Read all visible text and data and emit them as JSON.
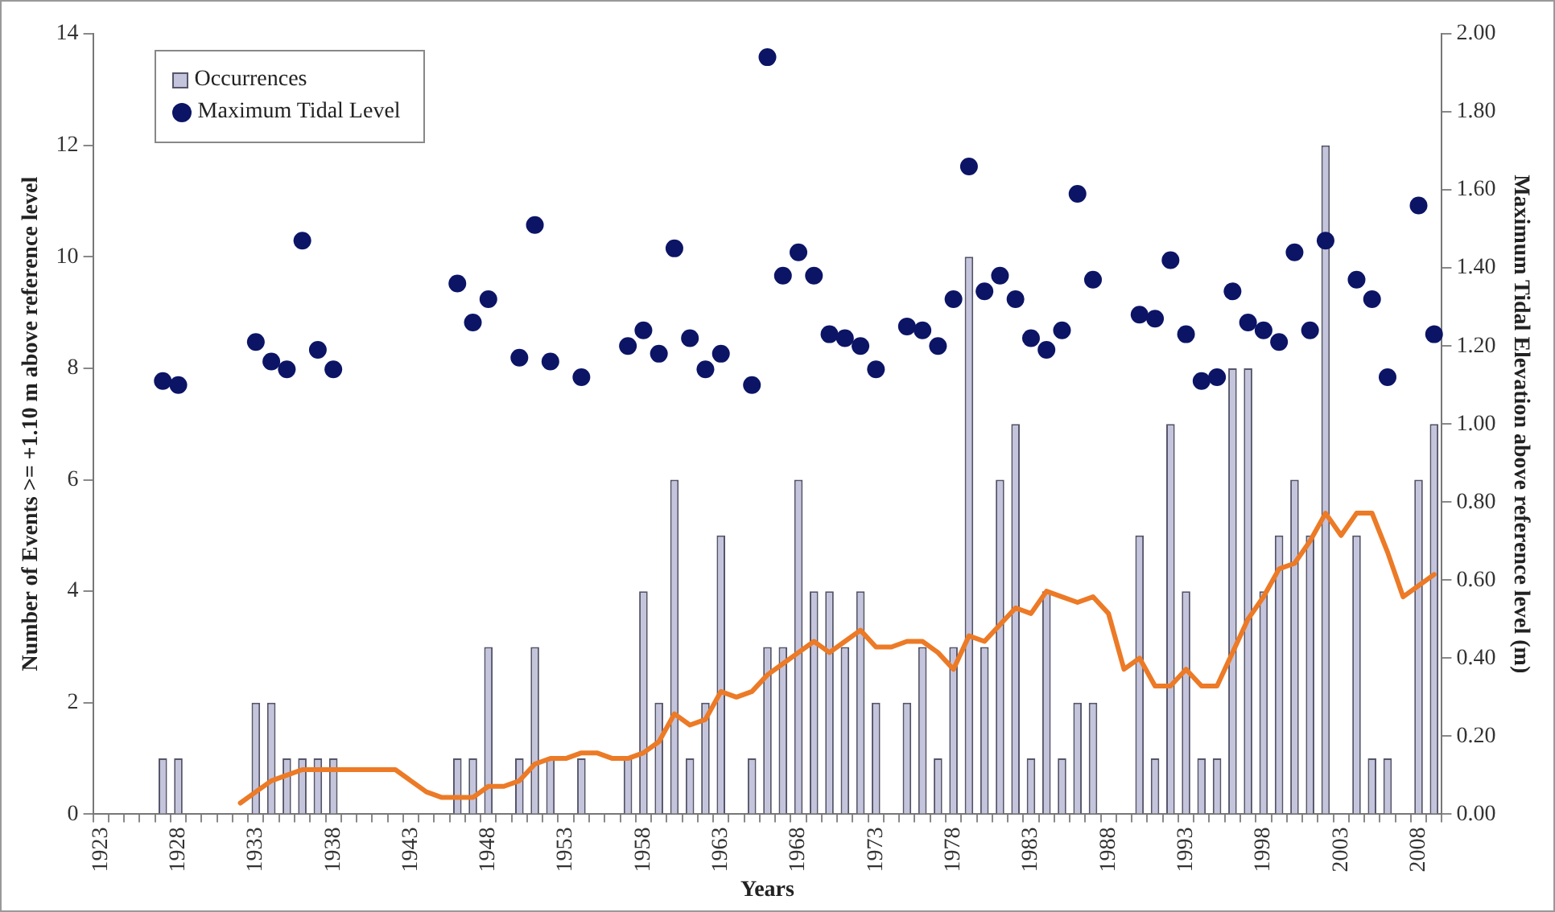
{
  "chart_data": {
    "type": "bar",
    "xlabel": "Years",
    "ylabel": "Number of Events >= +1.10 m above reference level",
    "y2label": "Maximum Tidal Elevation above reference level (m)",
    "categories": [
      "1923",
      null,
      null,
      null,
      null,
      "1928",
      null,
      null,
      null,
      null,
      "1933",
      null,
      null,
      null,
      null,
      "1938",
      null,
      null,
      null,
      null,
      "1943",
      null,
      null,
      null,
      null,
      "1948",
      null,
      null,
      null,
      null,
      "1953",
      null,
      null,
      null,
      null,
      "1958",
      null,
      null,
      null,
      null,
      "1963",
      null,
      null,
      null,
      null,
      "1968",
      null,
      null,
      null,
      null,
      "1973",
      null,
      null,
      null,
      null,
      "1978",
      null,
      null,
      null,
      null,
      "1983",
      null,
      null,
      null,
      null,
      "1988",
      null,
      null,
      null,
      null,
      "1993",
      null,
      null,
      null,
      null,
      "1998",
      null,
      null,
      null,
      null,
      "2003",
      null,
      null,
      null,
      null,
      "2008",
      null
    ],
    "series": [
      {
        "name": "Occurrences",
        "color": "#c4c4dc",
        "values": [
          0,
          0,
          0,
          0,
          1,
          1,
          0,
          0,
          0,
          0,
          2,
          2,
          1,
          1,
          1,
          1,
          0,
          0,
          0,
          0,
          0,
          0,
          0,
          1,
          1,
          3,
          0,
          1,
          3,
          1,
          0,
          1,
          0,
          0,
          1,
          4,
          2,
          6,
          1,
          2,
          5,
          0,
          1,
          3,
          3,
          6,
          4,
          4,
          3,
          4,
          2,
          0,
          2,
          3,
          1,
          3,
          10,
          3,
          6,
          7,
          1,
          4,
          1,
          2,
          2,
          0,
          0,
          5,
          1,
          7,
          4,
          1,
          1,
          8,
          8,
          4,
          5,
          6,
          5,
          12,
          0,
          5,
          1,
          1,
          0,
          6,
          7
        ]
      },
      {
        "type": "line",
        "color": "#ec7a26",
        "line_style": "solid",
        "marker": "none",
        "values": [
          null,
          null,
          null,
          null,
          null,
          null,
          null,
          null,
          null,
          0.2,
          0.4,
          0.6,
          0.7,
          0.8,
          0.8,
          0.8,
          0.8,
          0.8,
          0.8,
          0.8,
          0.6,
          0.4,
          0.3,
          0.3,
          0.3,
          0.5,
          0.5,
          0.6,
          0.9,
          1.0,
          1.0,
          1.1,
          1.1,
          1.0,
          1.0,
          1.1,
          1.3,
          1.8,
          1.6,
          1.7,
          2.2,
          2.1,
          2.2,
          2.5,
          2.7,
          2.9,
          3.1,
          2.9,
          3.1,
          3.3,
          3.0,
          3.0,
          3.1,
          3.1,
          2.9,
          2.6,
          3.2,
          3.1,
          3.4,
          3.7,
          3.6,
          4.0,
          3.9,
          3.8,
          3.9,
          3.6,
          2.6,
          2.8,
          2.3,
          2.3,
          2.6,
          2.3,
          2.3,
          2.9,
          3.5,
          3.9,
          4.4,
          4.5,
          4.9,
          5.4,
          5.0,
          5.4,
          5.4,
          4.7,
          3.9,
          4.1,
          4.3
        ]
      },
      {
        "name": "Maximum Tidal Level",
        "type": "scatter",
        "axis": "y2",
        "color": "#0c1466",
        "marker": "circle",
        "values": [
          null,
          null,
          null,
          null,
          1.11,
          1.1,
          null,
          null,
          null,
          null,
          1.21,
          1.16,
          1.14,
          1.47,
          1.19,
          1.14,
          null,
          null,
          null,
          null,
          null,
          null,
          null,
          1.36,
          1.26,
          1.32,
          null,
          1.17,
          1.51,
          1.16,
          null,
          1.12,
          null,
          null,
          1.2,
          1.24,
          1.18,
          1.45,
          1.22,
          1.14,
          1.18,
          null,
          1.1,
          1.94,
          1.38,
          1.44,
          1.38,
          1.23,
          1.22,
          1.2,
          1.14,
          null,
          1.25,
          1.24,
          1.2,
          1.32,
          1.66,
          1.34,
          1.38,
          1.32,
          1.22,
          1.19,
          1.24,
          1.59,
          1.37,
          null,
          null,
          1.28,
          1.27,
          1.42,
          1.23,
          1.11,
          1.12,
          1.34,
          1.26,
          1.24,
          1.21,
          1.44,
          1.24,
          1.47,
          null,
          1.37,
          1.32,
          1.12,
          null,
          1.56,
          1.23
        ]
      }
    ],
    "ylim": [
      0,
      14
    ],
    "yticks": [
      0,
      2,
      4,
      6,
      8,
      10,
      12,
      14
    ],
    "y2lim": [
      0,
      2
    ],
    "y2ticks": [
      {
        "value": 0,
        "label": "0.00"
      },
      {
        "value": 0.2,
        "label": "0.20"
      },
      {
        "value": 0.4,
        "label": "0.40"
      },
      {
        "value": 0.6,
        "label": "0.60"
      },
      {
        "value": 0.8,
        "label": "0.80"
      },
      {
        "value": 1.0,
        "label": "1.00"
      },
      {
        "value": 1.2,
        "label": "1.20"
      },
      {
        "value": 1.4,
        "label": "1.40"
      },
      {
        "value": 1.6,
        "label": "1.60"
      },
      {
        "value": 1.8,
        "label": "1.80"
      },
      {
        "value": 2.0,
        "label": "2.00"
      }
    ],
    "legend": "top left"
  }
}
